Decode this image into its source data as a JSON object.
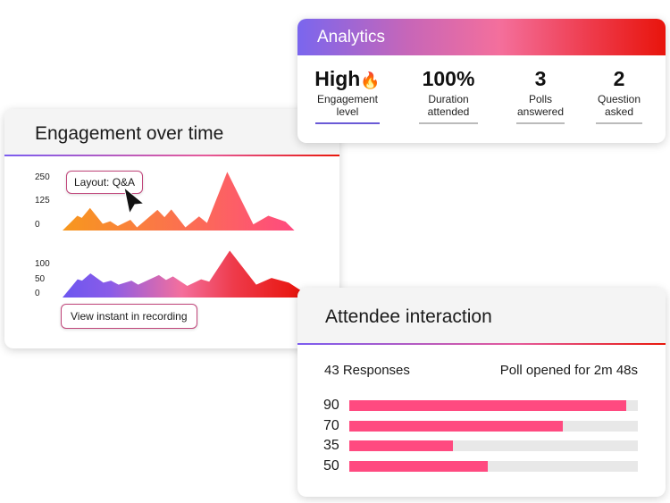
{
  "analytics": {
    "title": "Analytics",
    "gradient": [
      "#7a66ee",
      "#f46f9c",
      "#e8140c"
    ],
    "stats": [
      {
        "value": "High",
        "icon": "fire-icon",
        "label1": "Engagement",
        "label2": "level",
        "active": true
      },
      {
        "value": "100%",
        "label1": "Duration",
        "label2": "attended"
      },
      {
        "value": "3",
        "label1": "Polls",
        "label2": "answered"
      },
      {
        "value": "2",
        "label1": "Question",
        "label2": "asked"
      }
    ]
  },
  "engagement": {
    "title": "Engagement over time",
    "tooltip": "Layout: Q&A",
    "button": "View instant in recording"
  },
  "chart_data": [
    {
      "type": "area",
      "y_ticks": [
        "250",
        "125",
        "0"
      ],
      "ylim": [
        0,
        250
      ],
      "colors": [
        "#f7981d",
        "#ff4a80"
      ],
      "x": [
        0,
        6.3,
        8.2,
        11.7,
        17.1,
        20.3,
        23.5,
        28.9,
        31.7,
        40.4,
        43.4,
        46.3,
        52.3,
        58.1,
        61.5,
        70.1,
        81.2,
        87.6,
        94.9,
        98.7
      ],
      "values": [
        0,
        70,
        60,
        107,
        32,
        44,
        21,
        51,
        15,
        98,
        63,
        100,
        15,
        67,
        36,
        278,
        29,
        70,
        42,
        0
      ]
    },
    {
      "type": "area",
      "y_ticks": [
        "100",
        "50",
        "0"
      ],
      "ylim": [
        0,
        100
      ],
      "colors": [
        "#6c56f0",
        "#f46f9c",
        "#e8140c"
      ],
      "x": [
        0,
        6.3,
        8.2,
        11.7,
        17.1,
        20.3,
        23.5,
        28.9,
        31.7,
        40.4,
        43.4,
        46.3,
        52.3,
        58.1,
        61.5,
        70.1,
        81.2,
        87.6,
        94.9,
        100,
        100
      ],
      "values": [
        0,
        55,
        51,
        73,
        45,
        51,
        39,
        51,
        39,
        68,
        53,
        64,
        35,
        55,
        48,
        142,
        39,
        59,
        45,
        21,
        0
      ]
    }
  ],
  "attendee": {
    "title": "Attendee interaction",
    "responses": "43 Responses",
    "poll_time": "Poll opened for 2m 48s",
    "bar_color": "#ff4a80",
    "bars": [
      {
        "label": "90",
        "fill": 0.96
      },
      {
        "label": "70",
        "fill": 0.74
      },
      {
        "label": "35",
        "fill": 0.36
      },
      {
        "label": "50",
        "fill": 0.48
      }
    ]
  }
}
